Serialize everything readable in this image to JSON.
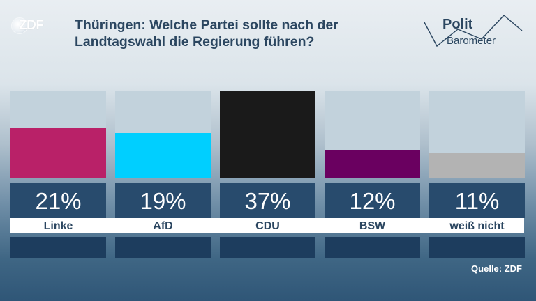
{
  "header": {
    "channel_logo": "ZDF",
    "title_line1": "Thüringen: Welche Partei sollte nach der",
    "title_line2": "Landtagswahl die Regierung führen?",
    "brand_line1": "Polit",
    "brand_line2": "Barometer"
  },
  "source": "Quelle: ZDF",
  "chart_data": {
    "type": "bar",
    "title": "Thüringen: Welche Partei sollte nach der Landtagswahl die Regierung führen?",
    "categories": [
      "Linke",
      "AfD",
      "CDU",
      "BSW",
      "weiß nicht"
    ],
    "values": [
      21,
      19,
      37,
      12,
      11
    ],
    "value_labels": [
      "21%",
      "19%",
      "37%",
      "12%",
      "11%"
    ],
    "unit": "%",
    "ylim": [
      0,
      37
    ],
    "colors": [
      "#b92168",
      "#00cfff",
      "#1a1a1a",
      "#6a0060",
      "#b3b3b3"
    ],
    "grid": false,
    "legend": "none"
  }
}
